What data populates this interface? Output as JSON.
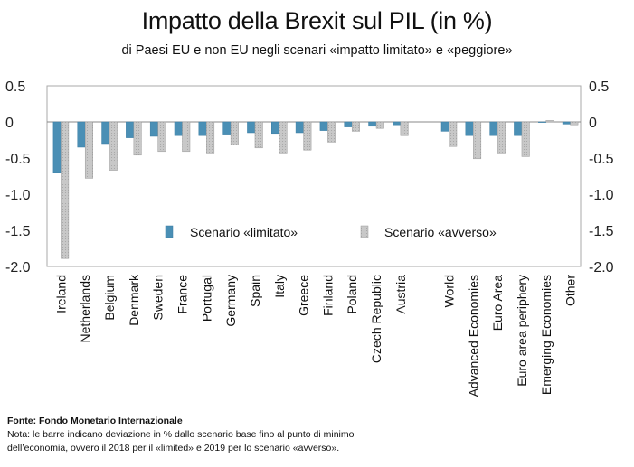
{
  "header": {
    "title": "Impatto della Brexit sul PIL (in %)",
    "subtitle": "di Paesi EU e non EU negli scenari «impatto limitato» e «peggiore»"
  },
  "footer": {
    "source": "Fonte: Fondo Monetario Internazionale",
    "note_line1": "Nota:  le barre indicano deviazione in % dallo scenario base fino al punto di minimo",
    "note_line2": "dell’economia, ovvero il 2018 per il «limited» e 2019 per lo scenario «avverso»."
  },
  "colors": {
    "limited": "#4a8fb5",
    "adverse": "#c8c8c8",
    "axis": "#888888",
    "frame": "#aaaaaa"
  },
  "chart_data": {
    "type": "bar",
    "categories": [
      "Ireland",
      "Netherlands",
      "Belgium",
      "Denmark",
      "Sweden",
      "France",
      "Portugal",
      "Germany",
      "Spain",
      "Italy",
      "Greece",
      "Finland",
      "Poland",
      "Czech Republic",
      "Austria",
      "",
      "World",
      "Advanced Economies",
      "Euro Area",
      "Euro area periphery",
      "Emerging Economies",
      "Other"
    ],
    "series": [
      {
        "name": "Scenario «limitato»",
        "values": [
          -0.7,
          -0.35,
          -0.3,
          -0.22,
          -0.2,
          -0.19,
          -0.19,
          -0.17,
          -0.15,
          -0.16,
          -0.15,
          -0.12,
          -0.07,
          -0.06,
          -0.04,
          null,
          -0.13,
          -0.19,
          -0.19,
          -0.19,
          0.0,
          -0.03
        ]
      },
      {
        "name": "Scenario «avverso»",
        "values": [
          -1.89,
          -0.78,
          -0.67,
          -0.46,
          -0.41,
          -0.41,
          -0.43,
          -0.32,
          -0.36,
          -0.43,
          -0.39,
          -0.28,
          -0.13,
          -0.09,
          -0.19,
          null,
          -0.34,
          -0.51,
          -0.43,
          -0.48,
          0.02,
          -0.04
        ]
      }
    ],
    "y_ticks": [
      "0.5",
      "0",
      "-0.5",
      "-1.0",
      "-1.5",
      "-2.0"
    ],
    "y_tick_values": [
      0.5,
      0,
      -0.5,
      -1.0,
      -1.5,
      -2.0
    ],
    "ylim": [
      -2.0,
      0.5
    ],
    "legend_position": "inside-center",
    "grid": false,
    "secondary_axis": true
  }
}
